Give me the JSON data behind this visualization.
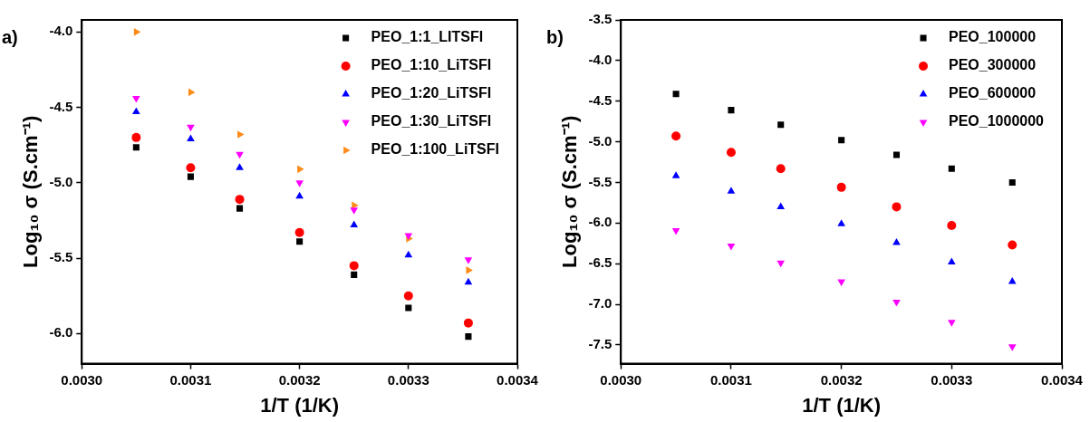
{
  "chart_data": [
    {
      "type": "scatter",
      "xlabel": "1/T (1/K)",
      "ylabel": "Log₁₀ σ (S.cm⁻¹)",
      "annotations": [
        "a)"
      ],
      "x": [
        0.00305,
        0.0031,
        0.003145,
        0.0032,
        0.00325,
        0.0033,
        0.003355
      ],
      "series": [
        {
          "name": "PEO_1:1_LITSFI",
          "color": "#000000",
          "marker": "square",
          "values": [
            -4.765,
            -4.96,
            -5.17,
            -5.39,
            -5.61,
            -5.83,
            -6.02
          ]
        },
        {
          "name": "PEO_1:10_LiTSFI",
          "color": "#ff0000",
          "marker": "circle",
          "values": [
            -4.7,
            -4.9,
            -5.11,
            -5.33,
            -5.55,
            -5.75,
            -5.93
          ]
        },
        {
          "name": "PEO_1:20_LiTSFI",
          "color": "#0000ff",
          "marker": "triangle",
          "values": [
            -4.53,
            -4.71,
            -4.9,
            -5.09,
            -5.28,
            -5.48,
            -5.66
          ]
        },
        {
          "name": "PEO_1:30_LiTSFI",
          "color": "#ff00ff",
          "marker": "triangle-down",
          "values": [
            -4.44,
            -4.63,
            -4.81,
            -5.0,
            -5.18,
            -5.35,
            -5.51
          ]
        },
        {
          "name": "PEO_1:100_LiTSFI",
          "color": "#ff8c1a",
          "marker": "triangle-right",
          "values": [
            -4.0,
            -4.4,
            -4.68,
            -4.91,
            -5.15,
            -5.37,
            -5.58
          ]
        }
      ],
      "xlim": [
        0.003,
        0.0034
      ],
      "xticks": [
        {
          "value": 0.003,
          "label": "0.0030"
        },
        {
          "value": 0.0031,
          "label": "0.0031"
        },
        {
          "value": 0.0032,
          "label": "0.0032"
        },
        {
          "value": 0.0033,
          "label": "0.0033"
        },
        {
          "value": 0.0034,
          "label": "0.0034"
        }
      ],
      "ylim": [
        -6.2,
        -3.92
      ],
      "yticks": [
        {
          "value": -6,
          "label": "-6.0"
        },
        -5.5,
        {
          "value": -5,
          "label": "-5.0"
        },
        -4.5,
        {
          "value": -4,
          "label": "-4.0"
        }
      ],
      "grid": false,
      "legend": "top right"
    },
    {
      "type": "scatter",
      "xlabel": "1/T (1/K)",
      "ylabel": "Log₁₀ σ (S.cm⁻¹)",
      "annotations": [
        "b)"
      ],
      "x": [
        0.00305,
        0.0031,
        0.003145,
        0.0032,
        0.00325,
        0.0033,
        0.003355
      ],
      "series": [
        {
          "name": "PEO_100000",
          "color": "#000000",
          "marker": "square",
          "values": [
            -4.41,
            -4.61,
            -4.79,
            -4.98,
            -5.16,
            -5.33,
            -5.5
          ]
        },
        {
          "name": "PEO_300000",
          "color": "#ff0000",
          "marker": "circle",
          "values": [
            -4.93,
            -5.13,
            -5.33,
            -5.56,
            -5.8,
            -6.03,
            -6.27
          ]
        },
        {
          "name": "PEO_600000",
          "color": "#0000ff",
          "marker": "triangle",
          "values": [
            -5.42,
            -5.61,
            -5.8,
            -6.01,
            -6.24,
            -6.48,
            -6.72
          ]
        },
        {
          "name": "PEO_1000000",
          "color": "#ff00ff",
          "marker": "triangle-down",
          "values": [
            -6.09,
            -6.28,
            -6.49,
            -6.72,
            -6.97,
            -7.22,
            -7.52
          ]
        }
      ],
      "xlim": [
        0.003,
        0.0034
      ],
      "xticks": [
        {
          "value": 0.003,
          "label": "0.0030"
        },
        {
          "value": 0.0031,
          "label": "0.0031"
        },
        {
          "value": 0.0032,
          "label": "0.0032"
        },
        {
          "value": 0.0033,
          "label": "0.0033"
        },
        {
          "value": 0.0034,
          "label": "0.0034"
        }
      ],
      "ylim": [
        -7.73,
        -3.5
      ],
      "yticks": [
        -7.5,
        {
          "value": -7,
          "label": "-7.0"
        },
        -6.5,
        {
          "value": -6,
          "label": "-6.0"
        },
        -5.5,
        {
          "value": -5,
          "label": "-5.0"
        },
        -4.5,
        {
          "value": -4,
          "label": "-4.0"
        },
        -3.5
      ],
      "grid": false,
      "legend": "top right"
    }
  ]
}
